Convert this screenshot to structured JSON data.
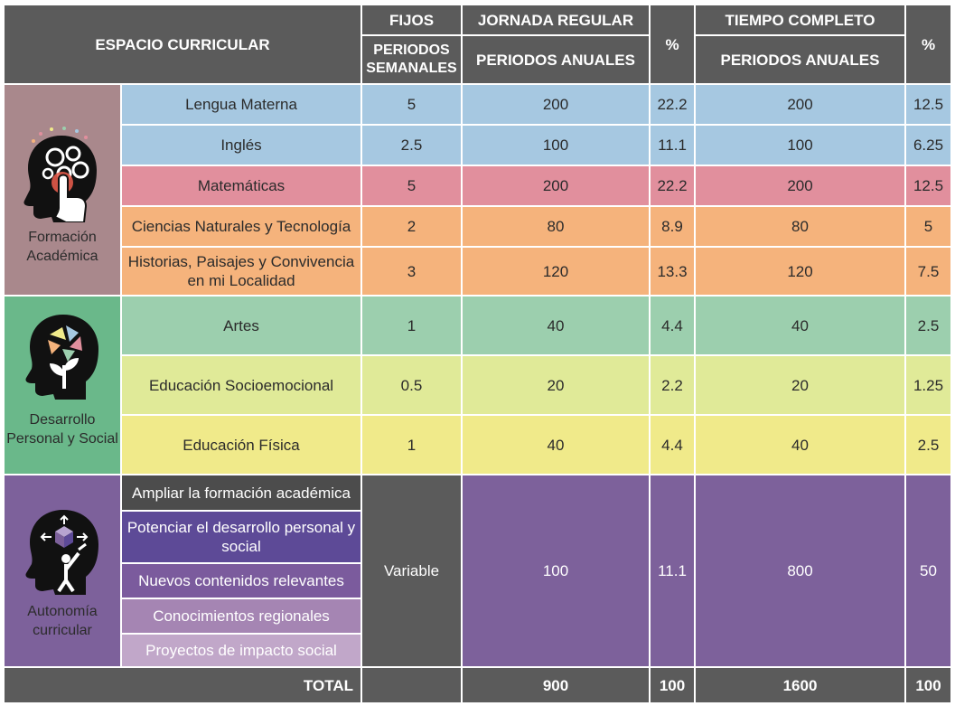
{
  "header": {
    "espacio": "ESPACIO CURRICULAR",
    "fijos": "FIJOS",
    "periodos_semanales": "PERIODOS SEMANALES",
    "jornada_regular": "JORNADA REGULAR",
    "periodos_anuales_1": "PERIODOS ANUALES",
    "pct_1": "%",
    "tiempo_completo": "TIEMPO COMPLETO",
    "periodos_anuales_2": "PERIODOS ANUALES",
    "pct_2": "%"
  },
  "categories": [
    {
      "label": "Formación Académica",
      "color": "#a9888c",
      "icon": "head-gears-icon"
    },
    {
      "label": "Desarrollo Personal y Social",
      "color": "#6ab88a",
      "icon": "head-hands-plant-icon"
    },
    {
      "label": "Autonomía curricular",
      "color": "#7d619b",
      "icon": "head-cube-icon"
    }
  ],
  "rows": [
    {
      "subject": "Lengua Materna",
      "fijos": "5",
      "jr": "200",
      "jr_pct": "22.2",
      "tc": "200",
      "tc_pct": "12.5",
      "color": "#a6c8e1"
    },
    {
      "subject": "Inglés",
      "fijos": "2.5",
      "jr": "100",
      "jr_pct": "11.1",
      "tc": "100",
      "tc_pct": "6.25",
      "color": "#a6c8e1"
    },
    {
      "subject": "Matemáticas",
      "fijos": "5",
      "jr": "200",
      "jr_pct": "22.2",
      "tc": "200",
      "tc_pct": "12.5",
      "color": "#e18f9d"
    },
    {
      "subject": "Ciencias Naturales y Tecnología",
      "fijos": "2",
      "jr": "80",
      "jr_pct": "8.9",
      "tc": "80",
      "tc_pct": "5",
      "color": "#f5b37c"
    },
    {
      "subject": "Historias, Paisajes y Convivencia en mi Localidad",
      "fijos": "3",
      "jr": "120",
      "jr_pct": "13.3",
      "tc": "120",
      "tc_pct": "7.5",
      "color": "#f5b37c"
    },
    {
      "subject": "Artes",
      "fijos": "1",
      "jr": "40",
      "jr_pct": "4.4",
      "tc": "40",
      "tc_pct": "2.5",
      "color": "#9ccfae"
    },
    {
      "subject": "Educación Socioemocional",
      "fijos": "0.5",
      "jr": "20",
      "jr_pct": "2.2",
      "tc": "20",
      "tc_pct": "1.25",
      "color": "#e0ea98"
    },
    {
      "subject": "Educación Física",
      "fijos": "1",
      "jr": "40",
      "jr_pct": "4.4",
      "tc": "40",
      "tc_pct": "2.5",
      "color": "#f0ea8a"
    }
  ],
  "autonomia": {
    "items": [
      {
        "label": "Ampliar la formación académica",
        "color": "#4c4c4c"
      },
      {
        "label": "Potenciar el desarrollo personal y social",
        "color": "#5d4a97"
      },
      {
        "label": "Nuevos contenidos relevantes",
        "color": "#7b5b9d"
      },
      {
        "label": "Conocimientos regionales",
        "color": "#a585b3"
      },
      {
        "label": "Proyectos de impacto social",
        "color": "#c1a7c9"
      }
    ],
    "fijos": "Variable",
    "jr": "100",
    "jr_pct": "11.1",
    "tc": "800",
    "tc_pct": "50",
    "fijos_color": "#5b5b5b",
    "value_color": "#7d619b"
  },
  "total": {
    "label": "TOTAL",
    "jr": "900",
    "jr_pct": "100",
    "tc": "1600",
    "tc_pct": "100"
  }
}
